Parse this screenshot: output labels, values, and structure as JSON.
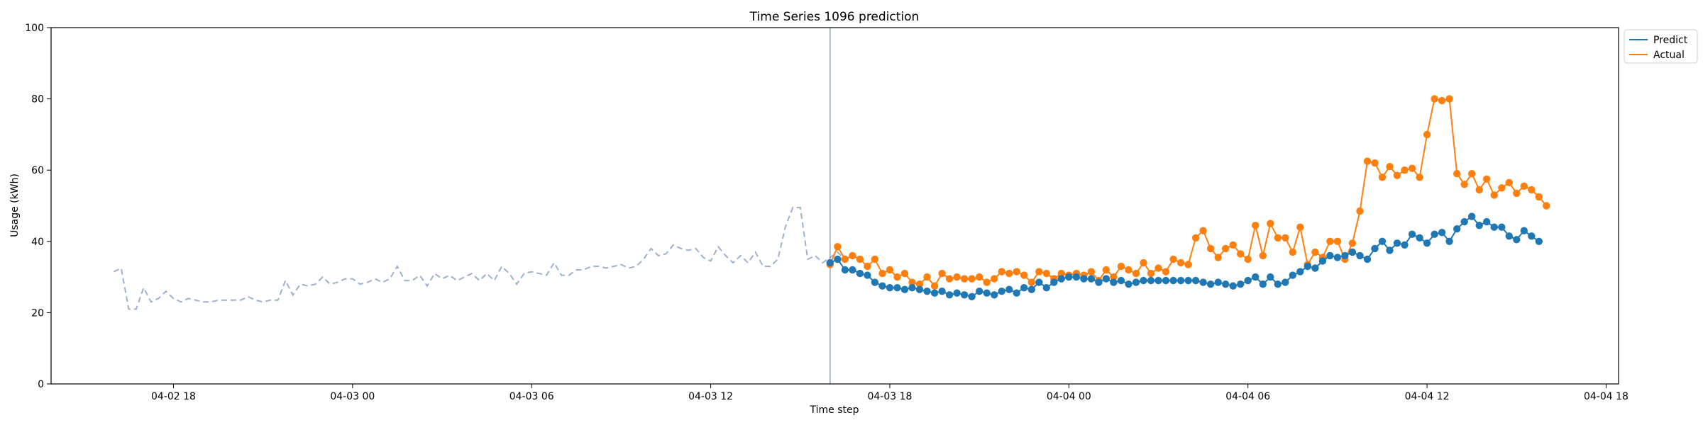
{
  "chart_data": {
    "type": "line",
    "title": "Time Series 1096 prediction",
    "xlabel": "Time step",
    "ylabel": "Usage (kWh)",
    "ylim": [
      0,
      100
    ],
    "xlim": [
      "2023-04-02 13:54",
      "2023-04-04 18:25"
    ],
    "yticks": [
      0,
      20,
      40,
      60,
      80,
      100
    ],
    "xticks": [
      {
        "t": "2023-04-02 18:00",
        "label": "04-02 18"
      },
      {
        "t": "2023-04-03 00:00",
        "label": "04-03 00"
      },
      {
        "t": "2023-04-03 06:00",
        "label": "04-03 06"
      },
      {
        "t": "2023-04-03 12:00",
        "label": "04-03 12"
      },
      {
        "t": "2023-04-03 18:00",
        "label": "04-03 18"
      },
      {
        "t": "2023-04-04 00:00",
        "label": "04-04 00"
      },
      {
        "t": "2023-04-04 06:00",
        "label": "04-04 06"
      },
      {
        "t": "2023-04-04 12:00",
        "label": "04-04 12"
      },
      {
        "t": "2023-04-04 18:00",
        "label": "04-04 18"
      }
    ],
    "legend_position": "outside-top-right",
    "grid": false,
    "forecast_start": "2023-04-03 16:00",
    "history": {
      "start": "2023-04-02 16:00",
      "step_minutes": 15,
      "color": "#9db0cf",
      "values": [
        31.5,
        32.5,
        21,
        21,
        27,
        23,
        24,
        26,
        24,
        23,
        24,
        23.5,
        23,
        23,
        23.5,
        23.5,
        23.5,
        23.5,
        24.5,
        23.5,
        23,
        23.5,
        23.5,
        29,
        25,
        28,
        27.5,
        28,
        30,
        28,
        28.5,
        29.5,
        29.5,
        28,
        28.5,
        29.5,
        28.5,
        29.5,
        33,
        29,
        29,
        30.5,
        27.5,
        31,
        29.5,
        30.5,
        29,
        30,
        31,
        29,
        31,
        29,
        33,
        31,
        28,
        31,
        31.5,
        31,
        30.5,
        34,
        30.5,
        30.5,
        32,
        32,
        33,
        33,
        32.5,
        33,
        33.5,
        32.5,
        33,
        35,
        38,
        36,
        36.5,
        39,
        38,
        37.5,
        38,
        35.5,
        34.5,
        38.5,
        36,
        34,
        36,
        34,
        37,
        33,
        33,
        35,
        44,
        49.5,
        49.5,
        35,
        36,
        34,
        35.5,
        37,
        35,
        36
      ]
    },
    "series": [
      {
        "name": "Predict",
        "color": "#1f77b4",
        "start": "2023-04-03 16:00",
        "step_minutes": 15,
        "values": [
          34,
          35,
          32,
          32,
          31,
          30.5,
          28.5,
          27.5,
          27,
          27,
          26.5,
          27,
          26.5,
          26,
          25.5,
          26,
          25,
          25.5,
          25,
          24.5,
          26,
          25.5,
          25,
          26,
          26.5,
          25.5,
          27,
          26.5,
          28.5,
          27,
          28.5,
          29.5,
          30,
          30,
          29.5,
          29.5,
          28.5,
          29.5,
          28.5,
          29,
          28,
          28.5,
          29,
          29,
          29,
          29,
          29,
          29,
          29,
          29,
          28.5,
          28,
          28.5,
          28,
          27.5,
          28,
          29,
          30,
          28,
          30,
          28,
          28.5,
          30.5,
          31.5,
          33,
          32.5,
          34.5,
          36,
          35.5,
          36,
          37,
          36,
          35,
          38,
          40,
          37.5,
          39.5,
          39,
          42,
          41,
          39.5,
          42,
          42.5,
          40,
          43.5,
          45.5,
          47,
          44.5,
          45.5,
          44,
          44,
          41.5,
          40.5,
          43,
          41.5,
          40
        ]
      },
      {
        "name": "Actual",
        "color": "#ff7f0e",
        "start": "2023-04-03 16:00",
        "step_minutes": 15,
        "values": [
          33.5,
          38.5,
          35,
          36,
          35,
          33,
          35,
          31,
          32,
          30,
          31,
          28.5,
          28,
          30,
          27.5,
          31,
          29.5,
          30,
          29.5,
          29.5,
          30,
          28.5,
          29.5,
          31.5,
          31,
          31.5,
          30.5,
          28.5,
          31.5,
          31,
          29.5,
          31,
          30.5,
          31,
          30.5,
          31.5,
          29,
          32,
          30,
          33,
          32,
          31,
          34,
          31,
          32.5,
          31.5,
          35,
          34,
          33.5,
          41,
          43,
          38,
          35.5,
          38,
          39,
          36.5,
          35,
          44.5,
          36,
          45,
          41,
          41,
          37,
          44,
          33.5,
          37,
          35.5,
          40,
          40,
          35,
          39.5,
          48.5,
          62.5,
          62,
          58,
          61,
          58.5,
          60,
          60.5,
          58,
          70,
          80,
          79.5,
          80,
          59,
          56,
          59,
          54.5,
          57.5,
          53,
          55,
          56.5,
          53.5,
          55.5,
          54.5,
          52.5,
          50
        ]
      }
    ]
  }
}
